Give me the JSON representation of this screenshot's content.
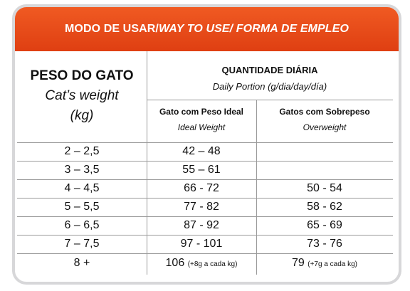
{
  "banner": {
    "part1": "MODO DE USAR/",
    "part2": " WAY TO USE/ FORMA DE EMPLEO"
  },
  "left_header": {
    "title": "PESO DO GATO",
    "subtitle": "Cat’s weight",
    "unit": "(kg)"
  },
  "right_header": {
    "title": "QUANTIDADE DIÁRIA",
    "subtitle": "Daily Portion (g/dia/day/día)"
  },
  "col_ideal": {
    "title": "Gato com Peso Ideal",
    "subtitle": "Ideal Weight"
  },
  "col_over": {
    "title": "Gatos com Sobrepeso",
    "subtitle": "Overweight"
  },
  "rows": [
    {
      "weight": "2 – 2,5",
      "ideal": "42 –  48",
      "ideal_note": "",
      "over": "",
      "over_note": ""
    },
    {
      "weight": "3 – 3,5",
      "ideal": "55 – 61",
      "ideal_note": "",
      "over": "",
      "over_note": ""
    },
    {
      "weight": "4 – 4,5",
      "ideal": "66 - 72",
      "ideal_note": "",
      "over": "50 - 54",
      "over_note": ""
    },
    {
      "weight": "5 – 5,5",
      "ideal": "77 - 82",
      "ideal_note": "",
      "over": "58 - 62",
      "over_note": ""
    },
    {
      "weight": "6 – 6,5",
      "ideal": "87 - 92",
      "ideal_note": "",
      "over": "65 - 69",
      "over_note": ""
    },
    {
      "weight": "7 – 7,5",
      "ideal": "97 - 101",
      "ideal_note": "",
      "over": "73 - 76",
      "over_note": ""
    },
    {
      "weight": "8 +",
      "ideal": "106",
      "ideal_note": "(+8g a cada kg)",
      "over": "79",
      "over_note": "(+7g a cada kg)"
    }
  ]
}
